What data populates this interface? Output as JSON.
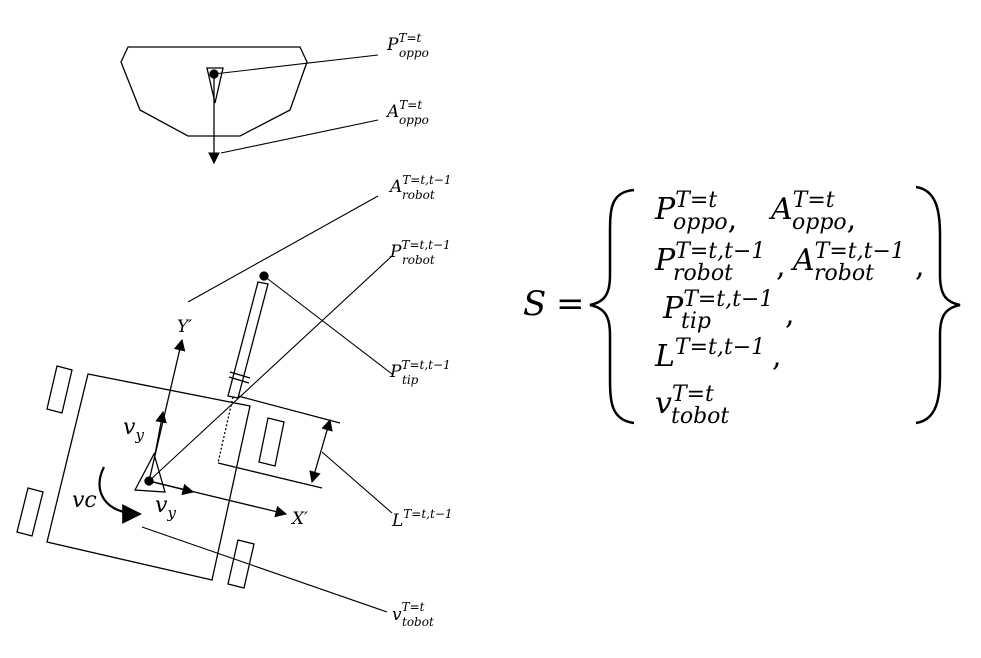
{
  "labels": {
    "p_oppo": {
      "main": "P",
      "sup": "T=t",
      "sub": "oppo"
    },
    "a_oppo": {
      "main": "A",
      "sup": "T=t",
      "sub": "oppo"
    },
    "a_robot": {
      "main": "A",
      "sup": "T=t,t−1",
      "sub": "robot"
    },
    "p_robot": {
      "main": "P",
      "sup": "T=t,t−1",
      "sub": "robot"
    },
    "p_tip": {
      "main": "P",
      "sup": "T=t,t−1",
      "sub": "tip"
    },
    "l": {
      "main": "L",
      "sup": "T=t,t−1"
    },
    "v_tobot": {
      "main": "v",
      "sup": "T=t",
      "sub": "tobot"
    },
    "axis_y": "Y′",
    "axis_x": "X′",
    "vy_up": "v",
    "vy_up_sub": "y",
    "vy_right": "v",
    "vy_right_sub": "y",
    "vc": "vc"
  },
  "equation": {
    "lhs": "S",
    "equals": "=",
    "row1": [
      {
        "main": "P",
        "sup": "T=t",
        "sub": "oppo",
        "punct": ","
      },
      {
        "main": "A",
        "sup": "T=t",
        "sub": "oppo",
        "punct": ","
      }
    ],
    "row2": [
      {
        "main": "P",
        "sup": "T=t,t−1",
        "sub": "robot",
        "punct": ","
      },
      {
        "main": "A",
        "sup": "T=t,t−1",
        "sub": "robot",
        "punct": ","
      }
    ],
    "row3": {
      "main": "P",
      "sup": "T=t,t−1",
      "sub": "tip",
      "punct": ","
    },
    "row4": {
      "main": "L",
      "sup": "T=t,t−1",
      "punct": ","
    },
    "row5": {
      "main": "v",
      "sup": "T=t",
      "sub": "tobot"
    }
  }
}
